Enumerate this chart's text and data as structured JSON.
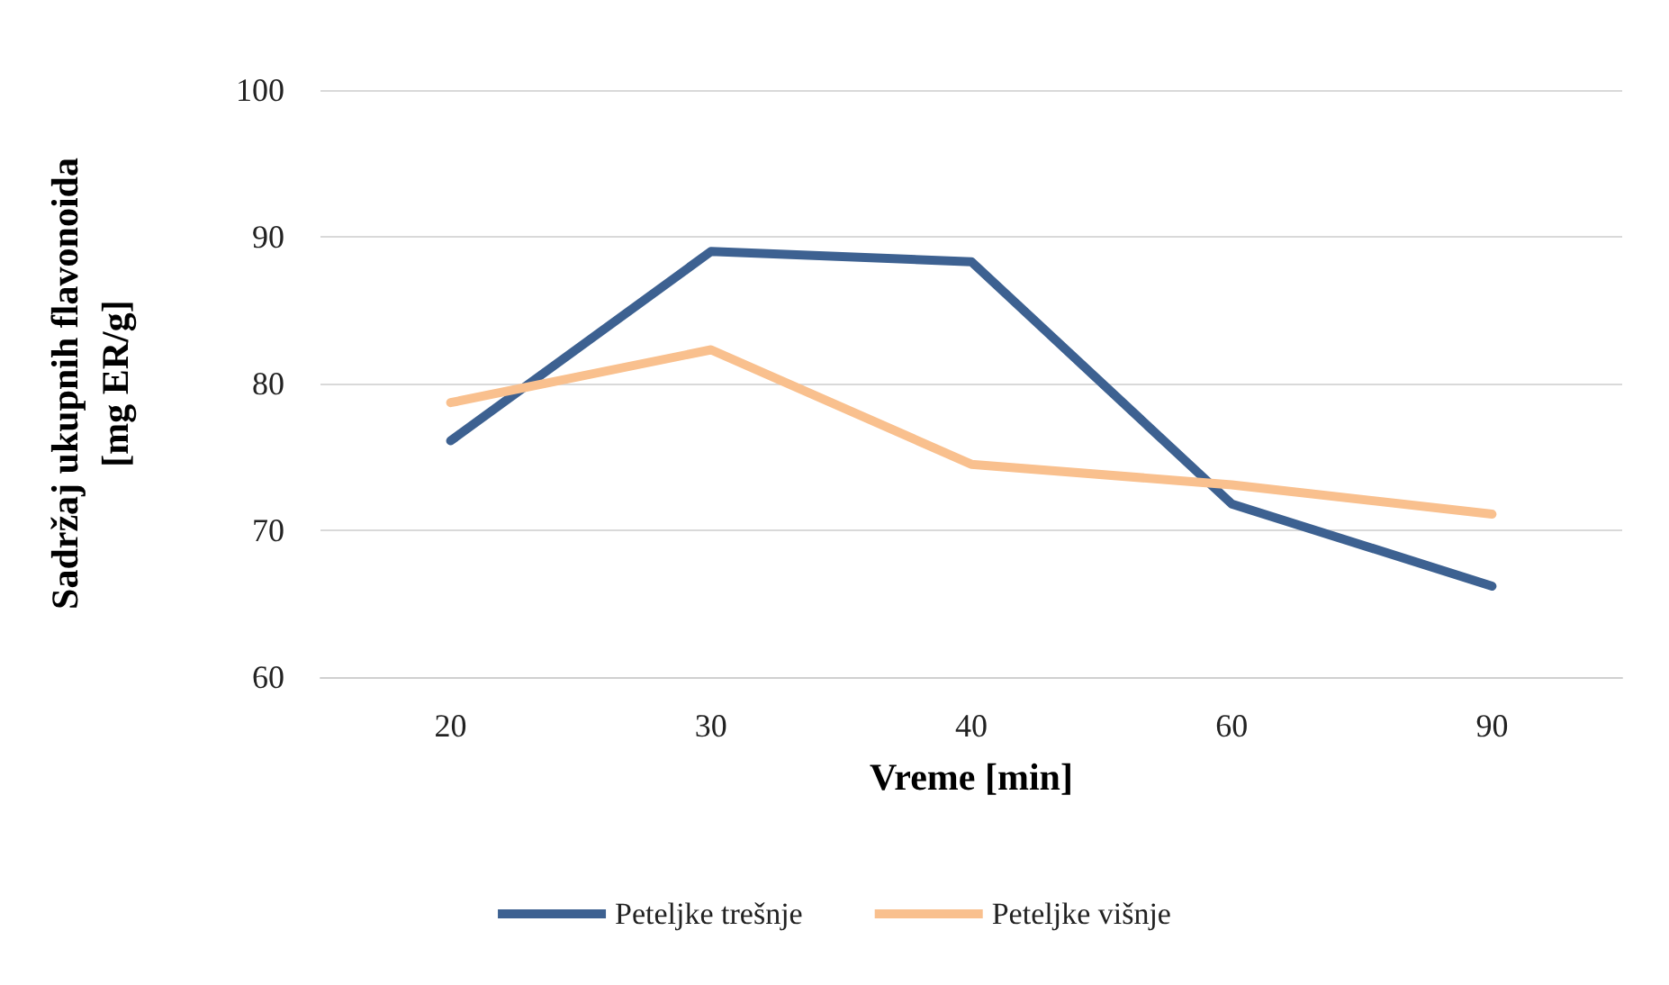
{
  "chart_data": {
    "type": "line",
    "xlabel": "Vreme [min]",
    "ylabel": "Sadržaj ukupnih flavonoida\n[mg ER/g]",
    "categories": [
      "20",
      "30",
      "40",
      "60",
      "90"
    ],
    "series": [
      {
        "name": "Peteljke trešnje",
        "color": "#3d6191",
        "values": [
          76.1,
          89.0,
          88.3,
          71.8,
          66.2
        ]
      },
      {
        "name": "Peteljke višnje",
        "color": "#f9c08e",
        "values": [
          78.7,
          82.3,
          74.5,
          73.1,
          71.1
        ]
      }
    ],
    "ylim": [
      60,
      100
    ],
    "yticks": [
      60,
      70,
      80,
      90,
      100
    ],
    "grid": "y",
    "legend": "bottom",
    "marker": "none",
    "line_style": "solid"
  }
}
